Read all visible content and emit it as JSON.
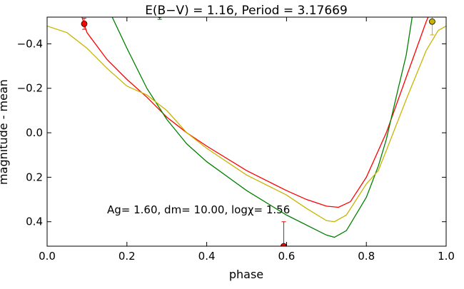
{
  "chart_data": {
    "type": "line",
    "title": "E(B−V) = 1.16, Period = 3.17669",
    "xlabel": "phase",
    "ylabel": "magnitude - mean",
    "annotation": "Ag= 1.60, dm=  10.00, logχ=  1.56",
    "xlim": [
      0,
      1
    ],
    "ylim": [
      0.51,
      -0.52
    ],
    "xticks": [
      0.0,
      0.2,
      0.4,
      0.6,
      0.8,
      1.0
    ],
    "yticks": [
      -0.4,
      -0.2,
      0.0,
      0.2,
      0.4
    ],
    "series": [
      {
        "color": "#ff0000",
        "x": [
          0.08,
          0.1,
          0.15,
          0.2,
          0.25,
          0.3,
          0.35,
          0.4,
          0.5,
          0.6,
          0.65,
          0.7,
          0.73,
          0.76,
          0.8,
          0.85,
          0.9,
          0.95,
          0.97
        ],
        "values": [
          -0.56,
          -0.45,
          -0.33,
          -0.24,
          -0.16,
          -0.07,
          0.0,
          0.06,
          0.17,
          0.26,
          0.3,
          0.33,
          0.335,
          0.31,
          0.2,
          0.0,
          -0.25,
          -0.5,
          -0.58
        ]
      },
      {
        "color": "#008000",
        "x": [
          0.15,
          0.2,
          0.25,
          0.3,
          0.35,
          0.4,
          0.5,
          0.6,
          0.7,
          0.72,
          0.75,
          0.8,
          0.83,
          0.85,
          0.88,
          0.9,
          0.92
        ],
        "values": [
          -0.57,
          -0.38,
          -0.2,
          -0.06,
          0.05,
          0.13,
          0.26,
          0.37,
          0.46,
          0.47,
          0.44,
          0.29,
          0.15,
          0.03,
          -0.2,
          -0.35,
          -0.58
        ]
      },
      {
        "color": "#c8b400",
        "x": [
          0.0,
          0.05,
          0.1,
          0.15,
          0.2,
          0.25,
          0.3,
          0.35,
          0.4,
          0.5,
          0.6,
          0.65,
          0.7,
          0.72,
          0.75,
          0.8,
          0.83,
          0.85,
          0.9,
          0.95,
          0.98,
          1.0
        ],
        "values": [
          -0.48,
          -0.45,
          -0.38,
          -0.29,
          -0.21,
          -0.17,
          -0.1,
          0.0,
          0.07,
          0.19,
          0.28,
          0.34,
          0.395,
          0.4,
          0.37,
          0.23,
          0.17,
          0.08,
          -0.15,
          -0.37,
          -0.46,
          -0.48
        ]
      }
    ],
    "points": {
      "x": [
        0.093,
        0.282,
        0.593,
        0.965
      ],
      "y": [
        -0.49,
        -0.53,
        0.51,
        -0.5
      ],
      "err": [
        0.025,
        0.02,
        0.11,
        0.06
      ],
      "colors": [
        "#ff0000",
        "#008000",
        "#ff0000",
        "#c8b400"
      ]
    }
  }
}
